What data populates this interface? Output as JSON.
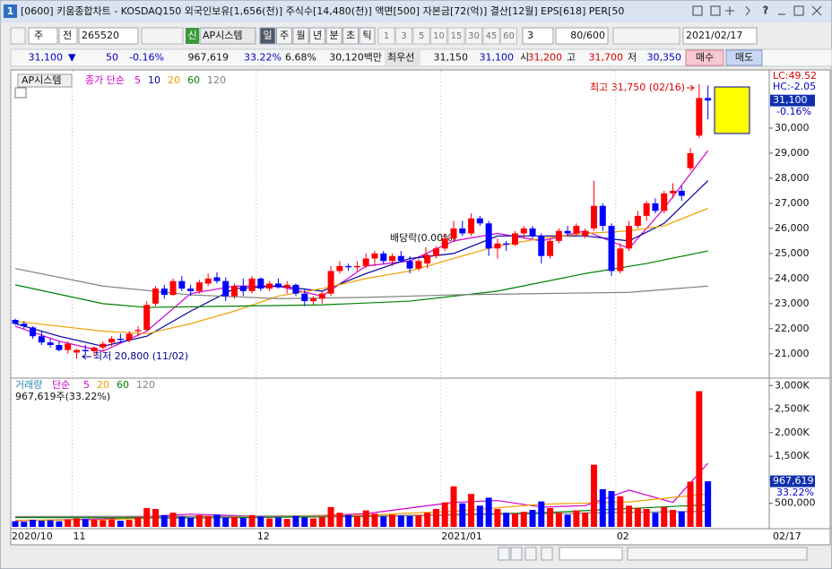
{
  "window": {
    "tab": "1",
    "title": "[0600] 키움종합차트 - KOSDAQ150 외국인보유[1,656(천)] 주식수[14,480(천)] 액면[500] 자본금[72(억)] 결산[12월] EPS[618] PER[50"
  },
  "toolbar": {
    "unit": "주",
    "mode": "전",
    "code": "265520",
    "new_badge": "신",
    "name": "AP시스템",
    "periods": [
      "일",
      "주",
      "월",
      "년",
      "분",
      "초",
      "틱"
    ],
    "intervals": [
      "1",
      "3",
      "5",
      "10",
      "15",
      "30",
      "45",
      "60"
    ],
    "interval_select": "3",
    "count": "80/600",
    "date": "2021/02/17"
  },
  "quote": {
    "price": "31,100",
    "arrow": "▼",
    "change": "50",
    "change_rate": "-0.16%",
    "volume": "967,619",
    "volume_rate": "33.22%",
    "turnover": "6.68%",
    "amount": "30,120백만",
    "best_label": "최우선",
    "ask": "31,150",
    "bid": "31,100",
    "open_label": "시",
    "open": "31,200",
    "high_label": "고",
    "high": "31,700",
    "low_label": "저",
    "low": "30,350",
    "buy": "매수",
    "sell": "매도"
  },
  "chart_data": [
    {
      "type": "candlestick",
      "name": "AP시스템",
      "ma_label": "종가 단순",
      "categories": [
        "2020/10",
        null,
        null,
        null,
        null,
        null,
        null,
        "11",
        null,
        null,
        null,
        null,
        null,
        null,
        null,
        null,
        null,
        null,
        null,
        null,
        null,
        null,
        null,
        null,
        null,
        null,
        null,
        null,
        "12",
        null,
        null,
        null,
        null,
        null,
        null,
        null,
        null,
        null,
        null,
        null,
        null,
        null,
        null,
        null,
        null,
        null,
        null,
        null,
        null,
        "2021/01",
        null,
        null,
        null,
        null,
        null,
        null,
        null,
        null,
        null,
        null,
        null,
        null,
        null,
        null,
        null,
        null,
        null,
        null,
        null,
        "02",
        null,
        null,
        null,
        null,
        null,
        null,
        null,
        null,
        null,
        null
      ],
      "open": [
        22350,
        22200,
        22050,
        21700,
        21450,
        21350,
        21150,
        21050,
        21150,
        21100,
        21250,
        21450,
        21600,
        21550,
        21900,
        21950,
        23000,
        23600,
        23350,
        23900,
        23600,
        23500,
        23800,
        24050,
        23900,
        23300,
        23700,
        23500,
        24000,
        23600,
        23800,
        23650,
        23750,
        23400,
        23100,
        23200,
        23400,
        24300,
        24500,
        24450,
        24500,
        24800,
        25000,
        24700,
        24900,
        24700,
        24400,
        24600,
        24900,
        25200,
        25600,
        26000,
        25800,
        26400,
        26200,
        25200,
        25400,
        25350,
        25800,
        26000,
        25700,
        24900,
        25500,
        25900,
        25800,
        25700,
        26000,
        26900,
        26100,
        24300,
        25200,
        26100,
        26500,
        27000,
        26700,
        27400,
        27500,
        28400,
        29700,
        31200
      ],
      "high": [
        22400,
        22300,
        22100,
        21900,
        21600,
        21500,
        21500,
        21200,
        21350,
        21300,
        21500,
        21700,
        21800,
        21900,
        22100,
        23100,
        23700,
        23750,
        24000,
        24100,
        23750,
        23950,
        24200,
        24250,
        24050,
        23800,
        24000,
        24100,
        24050,
        23900,
        24000,
        23900,
        23800,
        23550,
        23300,
        23500,
        24500,
        24700,
        24600,
        24700,
        25000,
        25100,
        25100,
        25000,
        25100,
        24900,
        24800,
        25000,
        25300,
        25800,
        26300,
        26300,
        26600,
        26500,
        26300,
        25600,
        25500,
        25900,
        26100,
        26100,
        25800,
        25600,
        26000,
        26100,
        26200,
        26000,
        27900,
        27000,
        26200,
        25400,
        26300,
        26700,
        27100,
        27200,
        27500,
        27800,
        27700,
        29200,
        31750,
        31700
      ],
      "low": [
        22150,
        22000,
        21600,
        21350,
        21250,
        21100,
        21000,
        20800,
        21000,
        20900,
        21100,
        21300,
        21450,
        21450,
        21700,
        21900,
        22900,
        23200,
        23300,
        23500,
        23300,
        23400,
        23700,
        23800,
        23100,
        23200,
        23300,
        23400,
        23500,
        23500,
        23600,
        23400,
        23300,
        22900,
        22950,
        23000,
        23300,
        24200,
        24300,
        24300,
        24400,
        24500,
        24600,
        24500,
        24650,
        24200,
        24300,
        24400,
        24800,
        25100,
        25500,
        25700,
        25700,
        26100,
        24900,
        24800,
        25100,
        25300,
        25600,
        25600,
        24600,
        24800,
        25400,
        25700,
        25700,
        25600,
        25900,
        25900,
        24100,
        24200,
        25100,
        26000,
        26300,
        26600,
        26600,
        27200,
        27100,
        28300,
        29600,
        30350
      ],
      "close": [
        22200,
        22100,
        21700,
        21450,
        21350,
        21150,
        21400,
        21150,
        21100,
        21250,
        21400,
        21600,
        21550,
        21800,
        21950,
        22950,
        23600,
        23350,
        23900,
        23600,
        23500,
        23850,
        24000,
        23900,
        23300,
        23700,
        23500,
        24000,
        23600,
        23800,
        23650,
        23750,
        23400,
        23100,
        23200,
        23400,
        24300,
        24500,
        24450,
        24500,
        24800,
        25000,
        24700,
        24900,
        24700,
        24400,
        24700,
        24900,
        25200,
        25600,
        26000,
        25800,
        26400,
        26200,
        25200,
        25400,
        25350,
        25800,
        26000,
        25700,
        24900,
        25500,
        25900,
        25800,
        26100,
        25900,
        26900,
        26100,
        24300,
        25200,
        26100,
        26500,
        27000,
        26700,
        27400,
        27500,
        27300,
        29000,
        31200,
        31100
      ],
      "up_color": "#ff0000",
      "down_color": "#0000ff",
      "ylim": [
        20100,
        32250
      ],
      "yticks": [
        {
          "value": 21000,
          "label": "21,000"
        },
        {
          "value": 22000,
          "label": "22,000"
        },
        {
          "value": 23000,
          "label": "23,000"
        },
        {
          "value": 24000,
          "label": "24,000"
        },
        {
          "value": 25000,
          "label": "25,000"
        },
        {
          "value": 26000,
          "label": "26,000"
        },
        {
          "value": 27000,
          "label": "27,000"
        },
        {
          "value": 28000,
          "label": "28,000"
        },
        {
          "value": 29000,
          "label": "29,000"
        },
        {
          "value": 30000,
          "label": "30,000"
        }
      ],
      "ma_lines": [
        {
          "name": "5",
          "color": "#d000d0",
          "x": [
            0,
            5,
            10,
            15,
            20,
            25,
            30,
            35,
            40,
            45,
            50,
            55,
            60,
            65,
            70,
            74,
            79
          ],
          "values": [
            22100,
            21500,
            21100,
            21900,
            23400,
            23700,
            23700,
            23300,
            24500,
            24700,
            25500,
            25800,
            25500,
            25900,
            25200,
            26800,
            29100
          ]
        },
        {
          "name": "10",
          "color": "#0000a0",
          "x": [
            0,
            5,
            10,
            15,
            20,
            25,
            30,
            35,
            40,
            45,
            50,
            55,
            60,
            65,
            70,
            74,
            79
          ],
          "values": [
            22200,
            21700,
            21300,
            21700,
            22700,
            23600,
            23700,
            23500,
            24200,
            24800,
            25000,
            25700,
            25700,
            25700,
            25500,
            26200,
            27900
          ]
        },
        {
          "name": "20",
          "color": "#f0a000",
          "x": [
            0,
            10,
            15,
            20,
            25,
            30,
            35,
            40,
            45,
            50,
            55,
            60,
            65,
            70,
            74,
            79
          ],
          "values": [
            22300,
            21900,
            21800,
            22200,
            22700,
            23300,
            23600,
            24000,
            24300,
            24800,
            25300,
            25600,
            25800,
            25900,
            26100,
            26800
          ]
        },
        {
          "name": "60",
          "color": "#008000",
          "x": [
            0,
            10,
            15,
            25,
            35,
            45,
            55,
            65,
            72,
            79
          ],
          "values": [
            23750,
            23000,
            22850,
            22900,
            22950,
            23100,
            23500,
            24200,
            24600,
            25100
          ]
        },
        {
          "name": "120",
          "color": "#808080",
          "x": [
            0,
            10,
            20,
            30,
            40,
            50,
            60,
            70,
            79
          ],
          "values": [
            24400,
            23700,
            23350,
            23200,
            23250,
            23350,
            23400,
            23450,
            23700
          ]
        }
      ],
      "annotations": [
        {
          "text": "최고 31,750 (02/16)"
        },
        {
          "text": "최저 20,800 (11/02)"
        },
        {
          "text": "배당락(0.00%)"
        }
      ],
      "axis_badges": [
        "LC:49.52",
        "HC:-2.05",
        "31,100",
        "-0.16%"
      ],
      "end_label": "02/17"
    },
    {
      "type": "bar",
      "name": "거래량",
      "ma_label": "단순",
      "summary": "967,619주(33.22%)",
      "values": [
        120000,
        110000,
        150000,
        130000,
        140000,
        120000,
        160000,
        180000,
        170000,
        150000,
        140000,
        160000,
        130000,
        150000,
        200000,
        400000,
        380000,
        250000,
        300000,
        220000,
        200000,
        250000,
        230000,
        260000,
        200000,
        210000,
        190000,
        250000,
        220000,
        180000,
        200000,
        170000,
        230000,
        200000,
        180000,
        210000,
        420000,
        300000,
        250000,
        230000,
        350000,
        280000,
        220000,
        260000,
        240000,
        230000,
        250000,
        300000,
        380000,
        520000,
        860000,
        500000,
        700000,
        450000,
        620000,
        380000,
        300000,
        280000,
        320000,
        360000,
        540000,
        400000,
        300000,
        260000,
        350000,
        300000,
        1320000,
        800000,
        760000,
        650000,
        450000,
        400000,
        380000,
        300000,
        420000,
        360000,
        330000,
        960000,
        2880000,
        967619
      ],
      "ylim": [
        0,
        3100000
      ],
      "yticks": [
        {
          "value": 500000,
          "label": "500,000"
        },
        {
          "value": 1000000,
          "label": "1,000K"
        },
        {
          "value": 1500000,
          "label": "1,500K"
        },
        {
          "value": 2000000,
          "label": "2,000K"
        },
        {
          "value": 2500000,
          "label": "2,500K"
        },
        {
          "value": 3000000,
          "label": "3,000K"
        }
      ],
      "ma_lines": [
        {
          "name": "5",
          "color": "#d000d0",
          "x": [
            0,
            10,
            20,
            30,
            40,
            50,
            55,
            60,
            65,
            70,
            75,
            79
          ],
          "values": [
            130000,
            170000,
            270000,
            210000,
            280000,
            520000,
            560000,
            420000,
            450000,
            780000,
            520000,
            1350000
          ]
        },
        {
          "name": "20",
          "color": "#f0a000",
          "x": [
            0,
            10,
            20,
            30,
            40,
            50,
            60,
            70,
            79
          ],
          "values": [
            140000,
            150000,
            220000,
            230000,
            250000,
            330000,
            480000,
            530000,
            700000
          ]
        },
        {
          "name": "60",
          "color": "#008000",
          "x": [
            0,
            20,
            40,
            60,
            79
          ],
          "values": [
            200000,
            190000,
            220000,
            300000,
            470000
          ]
        },
        {
          "name": "120",
          "color": "#808080",
          "x": [
            0,
            40,
            79
          ],
          "values": [
            220000,
            230000,
            330000
          ]
        }
      ],
      "axis_badges": [
        "967,619",
        "33.22%"
      ]
    }
  ]
}
